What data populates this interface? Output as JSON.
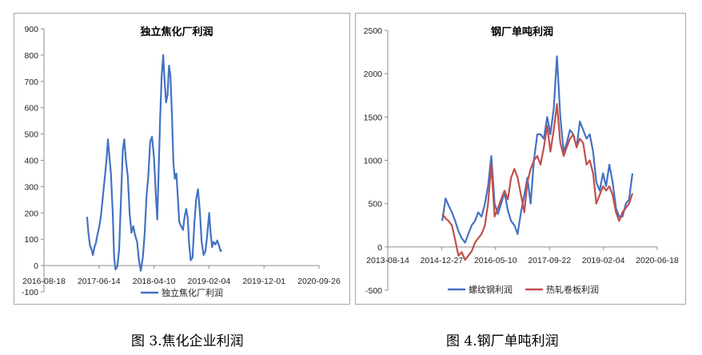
{
  "captions": {
    "left": "图 3.焦化企业利润",
    "right": "图 4.钢厂单吨利润"
  },
  "chart_data": [
    {
      "type": "line",
      "title": "独立焦化厂利润",
      "xlabel": "",
      "ylabel": "",
      "ylim": [
        -100,
        900
      ],
      "yticks": [
        -100,
        0,
        100,
        200,
        300,
        400,
        500,
        600,
        700,
        800,
        900
      ],
      "xticks": [
        "2016-08-18",
        "2017-06-14",
        "2018-04-10",
        "2019-02-04",
        "2019-12-01",
        "2020-09-26"
      ],
      "grid": false,
      "legend_position": "bottom",
      "colors": {
        "series": "#4472c4",
        "axis": "#8c8c8c"
      },
      "series": [
        {
          "name": "独立焦化厂利润",
          "points": [
            [
              "2017-04-10",
              185
            ],
            [
              "2017-04-18",
              120
            ],
            [
              "2017-04-26",
              75
            ],
            [
              "2017-05-05",
              60
            ],
            [
              "2017-05-12",
              40
            ],
            [
              "2017-05-20",
              70
            ],
            [
              "2017-05-28",
              85
            ],
            [
              "2017-06-05",
              115
            ],
            [
              "2017-06-15",
              145
            ],
            [
              "2017-06-25",
              190
            ],
            [
              "2017-07-05",
              260
            ],
            [
              "2017-07-15",
              330
            ],
            [
              "2017-07-25",
              400
            ],
            [
              "2017-08-02",
              480
            ],
            [
              "2017-08-08",
              430
            ],
            [
              "2017-08-18",
              350
            ],
            [
              "2017-08-28",
              200
            ],
            [
              "2017-09-05",
              30
            ],
            [
              "2017-09-12",
              -15
            ],
            [
              "2017-09-22",
              -5
            ],
            [
              "2017-10-02",
              60
            ],
            [
              "2017-10-12",
              250
            ],
            [
              "2017-10-22",
              440
            ],
            [
              "2017-10-30",
              480
            ],
            [
              "2017-11-08",
              400
            ],
            [
              "2017-11-18",
              340
            ],
            [
              "2017-11-28",
              200
            ],
            [
              "2017-12-08",
              125
            ],
            [
              "2017-12-18",
              150
            ],
            [
              "2017-12-28",
              115
            ],
            [
              "2018-01-08",
              90
            ],
            [
              "2018-01-18",
              20
            ],
            [
              "2018-01-28",
              -20
            ],
            [
              "2018-02-08",
              30
            ],
            [
              "2018-02-18",
              120
            ],
            [
              "2018-03-01",
              270
            ],
            [
              "2018-03-10",
              340
            ],
            [
              "2018-03-20",
              470
            ],
            [
              "2018-03-30",
              490
            ],
            [
              "2018-04-10",
              410
            ],
            [
              "2018-04-20",
              270
            ],
            [
              "2018-04-28",
              175
            ],
            [
              "2018-05-06",
              380
            ],
            [
              "2018-05-14",
              570
            ],
            [
              "2018-05-22",
              720
            ],
            [
              "2018-05-30",
              800
            ],
            [
              "2018-06-07",
              700
            ],
            [
              "2018-06-15",
              620
            ],
            [
              "2018-06-23",
              650
            ],
            [
              "2018-07-01",
              760
            ],
            [
              "2018-07-09",
              720
            ],
            [
              "2018-07-17",
              570
            ],
            [
              "2018-07-25",
              390
            ],
            [
              "2018-08-02",
              330
            ],
            [
              "2018-08-10",
              350
            ],
            [
              "2018-08-18",
              260
            ],
            [
              "2018-08-26",
              165
            ],
            [
              "2018-09-05",
              150
            ],
            [
              "2018-09-15",
              135
            ],
            [
              "2018-09-25",
              190
            ],
            [
              "2018-10-03",
              215
            ],
            [
              "2018-10-11",
              180
            ],
            [
              "2018-10-19",
              80
            ],
            [
              "2018-10-27",
              20
            ],
            [
              "2018-11-06",
              30
            ],
            [
              "2018-11-16",
              160
            ],
            [
              "2018-11-26",
              250
            ],
            [
              "2018-12-06",
              290
            ],
            [
              "2018-12-16",
              210
            ],
            [
              "2018-12-26",
              90
            ],
            [
              "2019-01-06",
              40
            ],
            [
              "2019-01-16",
              55
            ],
            [
              "2019-01-26",
              120
            ],
            [
              "2019-02-05",
              200
            ],
            [
              "2019-02-13",
              120
            ],
            [
              "2019-02-21",
              70
            ],
            [
              "2019-03-01",
              90
            ],
            [
              "2019-03-11",
              80
            ],
            [
              "2019-03-21",
              95
            ],
            [
              "2019-03-31",
              75
            ],
            [
              "2019-04-08",
              55
            ],
            [
              "2019-04-14",
              60
            ]
          ]
        }
      ]
    },
    {
      "type": "line",
      "title": "钢厂单吨利润",
      "xlabel": "",
      "ylabel": "",
      "ylim": [
        -500,
        2500
      ],
      "yticks": [
        -500,
        0,
        500,
        1000,
        1500,
        2000,
        2500
      ],
      "xticks": [
        "2013-08-14",
        "2014-12-27",
        "2016-05-10",
        "2017-09-22",
        "2019-02-04",
        "2020-06-18"
      ],
      "grid": false,
      "legend_position": "bottom",
      "colors": {
        "axis": "#8c8c8c"
      },
      "series": [
        {
          "name": "螺纹钢利润",
          "color": "#4472c4",
          "points": [
            [
              "2015-01-01",
              300
            ],
            [
              "2015-02-01",
              560
            ],
            [
              "2015-03-01",
              480
            ],
            [
              "2015-04-01",
              400
            ],
            [
              "2015-05-01",
              300
            ],
            [
              "2015-06-01",
              180
            ],
            [
              "2015-07-01",
              100
            ],
            [
              "2015-08-01",
              50
            ],
            [
              "2015-09-01",
              150
            ],
            [
              "2015-10-01",
              250
            ],
            [
              "2015-11-01",
              300
            ],
            [
              "2015-12-01",
              400
            ],
            [
              "2016-01-01",
              350
            ],
            [
              "2016-02-01",
              500
            ],
            [
              "2016-03-01",
              700
            ],
            [
              "2016-04-01",
              1050
            ],
            [
              "2016-05-01",
              500
            ],
            [
              "2016-06-01",
              380
            ],
            [
              "2016-07-01",
              500
            ],
            [
              "2016-08-01",
              630
            ],
            [
              "2016-09-01",
              420
            ],
            [
              "2016-10-01",
              300
            ],
            [
              "2016-11-01",
              250
            ],
            [
              "2016-12-01",
              150
            ],
            [
              "2017-01-01",
              400
            ],
            [
              "2017-02-01",
              600
            ],
            [
              "2017-03-01",
              800
            ],
            [
              "2017-04-01",
              500
            ],
            [
              "2017-05-01",
              1000
            ],
            [
              "2017-06-01",
              1300
            ],
            [
              "2017-07-01",
              1300
            ],
            [
              "2017-08-01",
              1250
            ],
            [
              "2017-09-01",
              1500
            ],
            [
              "2017-10-01",
              1300
            ],
            [
              "2017-11-01",
              1600
            ],
            [
              "2017-12-01",
              2200
            ],
            [
              "2018-01-01",
              1500
            ],
            [
              "2018-02-01",
              1100
            ],
            [
              "2018-03-01",
              1200
            ],
            [
              "2018-04-01",
              1350
            ],
            [
              "2018-05-01",
              1300
            ],
            [
              "2018-06-01",
              1150
            ],
            [
              "2018-07-01",
              1450
            ],
            [
              "2018-08-01",
              1350
            ],
            [
              "2018-09-01",
              1250
            ],
            [
              "2018-10-01",
              1300
            ],
            [
              "2018-11-01",
              1100
            ],
            [
              "2018-12-01",
              750
            ],
            [
              "2019-01-01",
              650
            ],
            [
              "2019-02-01",
              850
            ],
            [
              "2019-03-01",
              700
            ],
            [
              "2019-04-01",
              950
            ],
            [
              "2019-05-01",
              750
            ],
            [
              "2019-06-01",
              450
            ],
            [
              "2019-07-01",
              350
            ],
            [
              "2019-08-01",
              350
            ],
            [
              "2019-09-01",
              500
            ],
            [
              "2019-10-01",
              550
            ],
            [
              "2019-11-01",
              850
            ]
          ]
        },
        {
          "name": "热轧卷板利润",
          "color": "#c0504d",
          "points": [
            [
              "2015-01-01",
              380
            ],
            [
              "2015-02-01",
              330
            ],
            [
              "2015-03-01",
              300
            ],
            [
              "2015-04-01",
              250
            ],
            [
              "2015-05-01",
              80
            ],
            [
              "2015-06-01",
              -100
            ],
            [
              "2015-07-01",
              -60
            ],
            [
              "2015-08-01",
              -150
            ],
            [
              "2015-09-01",
              -100
            ],
            [
              "2015-10-01",
              -50
            ],
            [
              "2015-11-01",
              50
            ],
            [
              "2015-12-01",
              100
            ],
            [
              "2016-01-01",
              150
            ],
            [
              "2016-02-01",
              250
            ],
            [
              "2016-03-01",
              500
            ],
            [
              "2016-04-01",
              950
            ],
            [
              "2016-05-01",
              350
            ],
            [
              "2016-06-01",
              450
            ],
            [
              "2016-07-01",
              550
            ],
            [
              "2016-08-01",
              650
            ],
            [
              "2016-09-01",
              550
            ],
            [
              "2016-10-01",
              800
            ],
            [
              "2016-11-01",
              900
            ],
            [
              "2016-12-01",
              800
            ],
            [
              "2017-01-01",
              600
            ],
            [
              "2017-02-01",
              400
            ],
            [
              "2017-03-01",
              750
            ],
            [
              "2017-04-01",
              900
            ],
            [
              "2017-05-01",
              1000
            ],
            [
              "2017-06-01",
              1050
            ],
            [
              "2017-07-01",
              950
            ],
            [
              "2017-08-01",
              1150
            ],
            [
              "2017-09-01",
              1400
            ],
            [
              "2017-10-01",
              1100
            ],
            [
              "2017-11-01",
              1350
            ],
            [
              "2017-12-01",
              1650
            ],
            [
              "2018-01-01",
              1200
            ],
            [
              "2018-02-01",
              1050
            ],
            [
              "2018-03-01",
              1150
            ],
            [
              "2018-04-01",
              1250
            ],
            [
              "2018-05-01",
              1300
            ],
            [
              "2018-06-01",
              1150
            ],
            [
              "2018-07-01",
              1250
            ],
            [
              "2018-08-01",
              1200
            ],
            [
              "2018-09-01",
              950
            ],
            [
              "2018-10-01",
              1000
            ],
            [
              "2018-11-01",
              850
            ],
            [
              "2018-12-01",
              500
            ],
            [
              "2019-01-01",
              600
            ],
            [
              "2019-02-01",
              700
            ],
            [
              "2019-03-01",
              650
            ],
            [
              "2019-04-01",
              700
            ],
            [
              "2019-05-01",
              600
            ],
            [
              "2019-06-01",
              400
            ],
            [
              "2019-07-01",
              300
            ],
            [
              "2019-08-01",
              400
            ],
            [
              "2019-09-01",
              450
            ],
            [
              "2019-10-01",
              500
            ],
            [
              "2019-11-01",
              620
            ]
          ]
        }
      ]
    }
  ]
}
